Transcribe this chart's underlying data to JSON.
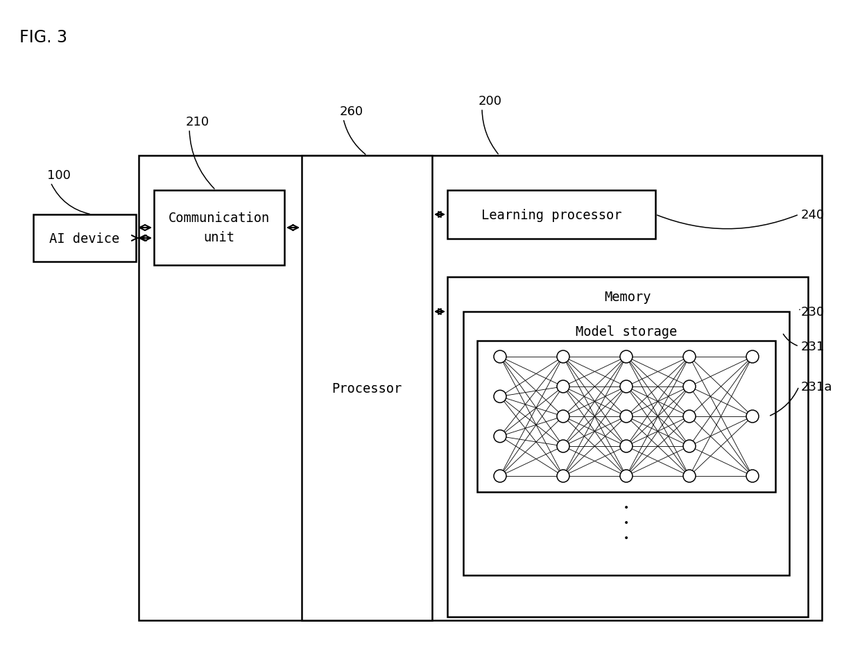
{
  "fig_label": "FIG. 3",
  "bg": "#ffffff",
  "lc": "#000000",
  "label_100": "100",
  "label_200": "200",
  "label_210": "210",
  "label_240": "240",
  "label_260": "260",
  "label_230": "230",
  "label_231": "231",
  "label_231a": "231a",
  "text_ai": "AI device",
  "text_comm": "Communication\nunit",
  "text_proc": "Processor",
  "text_lp": "Learning processor",
  "text_mem": "Memory",
  "text_ms": "Model storage"
}
